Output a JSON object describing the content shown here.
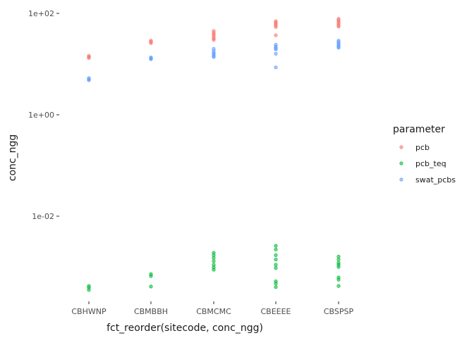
{
  "chart_data": {
    "type": "scatter",
    "xlabel": "fct_reorder(sitecode, conc_ngg)",
    "ylabel": "conc_ngg",
    "y_scale": "log10",
    "ylim": [
      0.00022,
      200
    ],
    "y_ticks": [
      {
        "value": 100,
        "label": "1e+02"
      },
      {
        "value": 1,
        "label": "1e+00"
      },
      {
        "value": 0.01,
        "label": "1e-02"
      }
    ],
    "categories": [
      "CBHWNP",
      "CBMBBH",
      "CBMCMC",
      "CBEEEE",
      "CBSPSP"
    ],
    "grid": false,
    "legend": {
      "title": "parameter",
      "placement": "right"
    },
    "series": [
      {
        "name": "pcb",
        "color": "#F8766D",
        "points": [
          {
            "x": "CBHWNP",
            "y": 14.5
          },
          {
            "x": "CBHWNP",
            "y": 13.8
          },
          {
            "x": "CBHWNP",
            "y": 13.2
          },
          {
            "x": "CBMBBH",
            "y": 29
          },
          {
            "x": "CBMBBH",
            "y": 27.5
          },
          {
            "x": "CBMBBH",
            "y": 26
          },
          {
            "x": "CBMCMC",
            "y": 45
          },
          {
            "x": "CBMCMC",
            "y": 41
          },
          {
            "x": "CBMCMC",
            "y": 38
          },
          {
            "x": "CBMCMC",
            "y": 35
          },
          {
            "x": "CBMCMC",
            "y": 32
          },
          {
            "x": "CBMCMC",
            "y": 30
          },
          {
            "x": "CBEEEE",
            "y": 70
          },
          {
            "x": "CBEEEE",
            "y": 66
          },
          {
            "x": "CBEEEE",
            "y": 62
          },
          {
            "x": "CBEEEE",
            "y": 58
          },
          {
            "x": "CBEEEE",
            "y": 54
          },
          {
            "x": "CBEEEE",
            "y": 37
          },
          {
            "x": "CBSPSP",
            "y": 78
          },
          {
            "x": "CBSPSP",
            "y": 73
          },
          {
            "x": "CBSPSP",
            "y": 68
          },
          {
            "x": "CBSPSP",
            "y": 63
          },
          {
            "x": "CBSPSP",
            "y": 58
          },
          {
            "x": "CBSPSP",
            "y": 55
          }
        ]
      },
      {
        "name": "pcb_teq",
        "color": "#00BA38",
        "points": [
          {
            "x": "CBHWNP",
            "y": 0.00042
          },
          {
            "x": "CBHWNP",
            "y": 0.00039
          },
          {
            "x": "CBHWNP",
            "y": 0.00035
          },
          {
            "x": "CBMBBH",
            "y": 0.00072
          },
          {
            "x": "CBMBBH",
            "y": 0.00066
          },
          {
            "x": "CBMBBH",
            "y": 0.00041
          },
          {
            "x": "CBMCMC",
            "y": 0.0019
          },
          {
            "x": "CBMCMC",
            "y": 0.0017
          },
          {
            "x": "CBMCMC",
            "y": 0.0015
          },
          {
            "x": "CBMCMC",
            "y": 0.0013
          },
          {
            "x": "CBMCMC",
            "y": 0.0011
          },
          {
            "x": "CBMCMC",
            "y": 0.00098
          },
          {
            "x": "CBMCMC",
            "y": 0.00088
          },
          {
            "x": "CBEEEE",
            "y": 0.0026
          },
          {
            "x": "CBEEEE",
            "y": 0.0022
          },
          {
            "x": "CBEEEE",
            "y": 0.0017
          },
          {
            "x": "CBEEEE",
            "y": 0.0014
          },
          {
            "x": "CBEEEE",
            "y": 0.0011
          },
          {
            "x": "CBEEEE",
            "y": 0.00095
          },
          {
            "x": "CBEEEE",
            "y": 0.00052
          },
          {
            "x": "CBEEEE",
            "y": 0.00047
          },
          {
            "x": "CBEEEE",
            "y": 0.0004
          },
          {
            "x": "CBSPSP",
            "y": 0.0016
          },
          {
            "x": "CBSPSP",
            "y": 0.0014
          },
          {
            "x": "CBSPSP",
            "y": 0.0012
          },
          {
            "x": "CBSPSP",
            "y": 0.0011
          },
          {
            "x": "CBSPSP",
            "y": 0.001
          },
          {
            "x": "CBSPSP",
            "y": 0.00062
          },
          {
            "x": "CBSPSP",
            "y": 0.00056
          },
          {
            "x": "CBSPSP",
            "y": 0.00042
          }
        ]
      },
      {
        "name": "swat_pcbs",
        "color": "#619CFF",
        "points": [
          {
            "x": "CBHWNP",
            "y": 5.3
          },
          {
            "x": "CBHWNP",
            "y": 5.0
          },
          {
            "x": "CBHWNP",
            "y": 4.8
          },
          {
            "x": "CBMBBH",
            "y": 13.5
          },
          {
            "x": "CBMBBH",
            "y": 13.0
          },
          {
            "x": "CBMBBH",
            "y": 12.5
          },
          {
            "x": "CBMCMC",
            "y": 20
          },
          {
            "x": "CBMCMC",
            "y": 18
          },
          {
            "x": "CBMCMC",
            "y": 16.5
          },
          {
            "x": "CBMCMC",
            "y": 15.5
          },
          {
            "x": "CBMCMC",
            "y": 14.5
          },
          {
            "x": "CBMCMC",
            "y": 13.8
          },
          {
            "x": "CBEEEE",
            "y": 24
          },
          {
            "x": "CBEEEE",
            "y": 22
          },
          {
            "x": "CBEEEE",
            "y": 20.5
          },
          {
            "x": "CBEEEE",
            "y": 19.5
          },
          {
            "x": "CBEEEE",
            "y": 16
          },
          {
            "x": "CBEEEE",
            "y": 8.6
          },
          {
            "x": "CBSPSP",
            "y": 29
          },
          {
            "x": "CBSPSP",
            "y": 27
          },
          {
            "x": "CBSPSP",
            "y": 25
          },
          {
            "x": "CBSPSP",
            "y": 23.5
          },
          {
            "x": "CBSPSP",
            "y": 22
          },
          {
            "x": "CBSPSP",
            "y": 21
          }
        ]
      }
    ]
  }
}
